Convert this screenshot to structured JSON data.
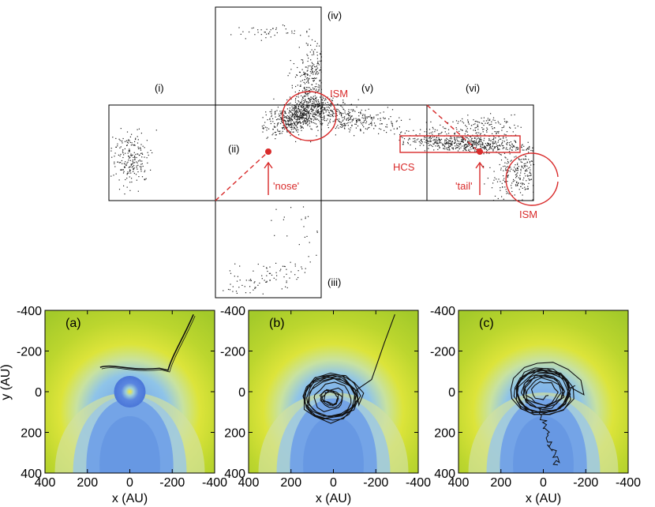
{
  "top": {
    "faces": [
      {
        "id": "i",
        "label": "(i)"
      },
      {
        "id": "ii",
        "label": "(ii)"
      },
      {
        "id": "iii",
        "label": "(iii)"
      },
      {
        "id": "iv",
        "label": "(iv)"
      },
      {
        "id": "v",
        "label": "(v)"
      },
      {
        "id": "vi",
        "label": "(vi)"
      }
    ],
    "annotations": {
      "ism_top": "ISM",
      "ism_right": "ISM",
      "hcs": "HCS",
      "nose": "'nose'",
      "tail": "'tail'"
    },
    "colors": {
      "annotation": "#d92b2b",
      "dots": "#222222"
    }
  },
  "panels": [
    {
      "id": "a",
      "label": "(a)",
      "show_ylabel": true
    },
    {
      "id": "b",
      "label": "(b)",
      "show_ylabel": false
    },
    {
      "id": "c",
      "label": "(c)",
      "show_ylabel": false
    }
  ],
  "axes": {
    "xlabel": "x (AU)",
    "ylabel": "y (AU)",
    "x_ticks": [
      "400",
      "200",
      "0",
      "-200",
      "-400"
    ],
    "y_ticks": [
      "-400",
      "-200",
      "0",
      "200",
      "400"
    ],
    "xlim": [
      400,
      -400
    ],
    "ylim": [
      -400,
      400
    ]
  },
  "colors": {
    "outer": "#a8cc2c",
    "mid": "#cfe030",
    "shell": "#e0e23a",
    "inner": "#6fa0e8",
    "core": "#3f6fd6"
  }
}
